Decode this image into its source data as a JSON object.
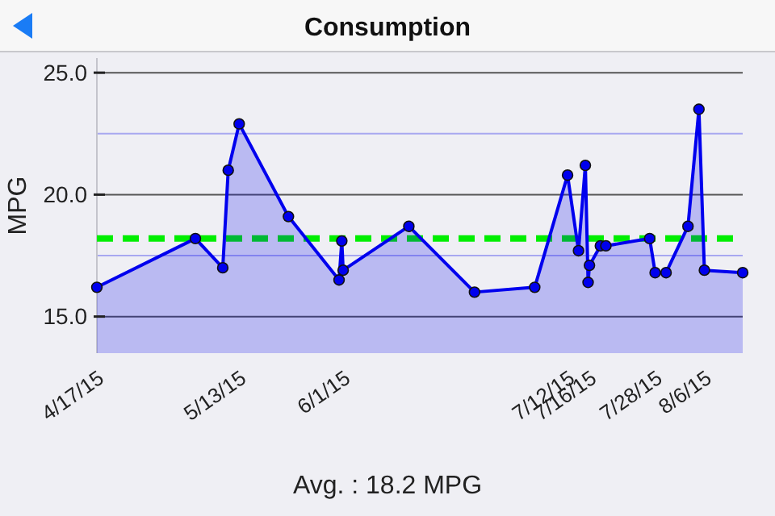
{
  "chart_data": {
    "type": "area",
    "title": "Consumption",
    "ylabel": "MPG",
    "annotations": [
      "Avg. : 18.2 MPG"
    ],
    "x": [
      "2015-04-17",
      "2015-05-05",
      "2015-05-10",
      "2015-05-11",
      "2015-05-13",
      "2015-05-22",
      "2015-05-31T06:00",
      "2015-05-31T18:00",
      "2015-06-01",
      "2015-06-13",
      "2015-06-25",
      "2015-07-06",
      "2015-07-12",
      "2015-07-14",
      "2015-07-15T06:00",
      "2015-07-15T18:00",
      "2015-07-16",
      "2015-07-18",
      "2015-07-19",
      "2015-07-27",
      "2015-07-28",
      "2015-07-30",
      "2015-08-03",
      "2015-08-05",
      "2015-08-06",
      "2015-08-13"
    ],
    "series": [
      {
        "color": "#0000ee",
        "values": [
          16.2,
          18.2,
          17.0,
          21.0,
          22.9,
          19.1,
          16.5,
          18.1,
          16.9,
          18.7,
          16.0,
          16.2,
          20.8,
          17.7,
          21.2,
          16.4,
          17.1,
          17.9,
          17.9,
          18.2,
          16.8,
          16.8,
          18.7,
          23.5,
          16.9,
          16.8
        ]
      }
    ],
    "xlim": [
      "2015-04-17",
      "2015-08-13"
    ],
    "xticks": [
      {
        "value": "2015-04-17",
        "label": "4/17/15"
      },
      {
        "value": "2015-05-13",
        "label": "5/13/15"
      },
      {
        "value": "2015-06-01",
        "label": "6/1/15"
      },
      {
        "value": "2015-07-12",
        "label": "7/12/15"
      },
      {
        "value": "2015-07-16",
        "label": "7/16/15"
      },
      {
        "value": "2015-07-28",
        "label": "7/28/15"
      },
      {
        "value": "2015-08-06",
        "label": "8/6/15"
      }
    ],
    "ylim": [
      13.5,
      25.6
    ],
    "yticks": [
      {
        "value": 15,
        "label": "15.0"
      },
      {
        "value": 17.5,
        "label": null
      },
      {
        "value": 20,
        "label": "20.0"
      },
      {
        "value": 22.5,
        "label": null
      },
      {
        "value": 25,
        "label": "25.0"
      }
    ],
    "grid": "y",
    "marker": "circle",
    "line_style": "solid",
    "ref_lines": [
      {
        "axis": "y",
        "value": 18.2,
        "color": "#00ee00",
        "line_style": "dashed"
      }
    ]
  }
}
